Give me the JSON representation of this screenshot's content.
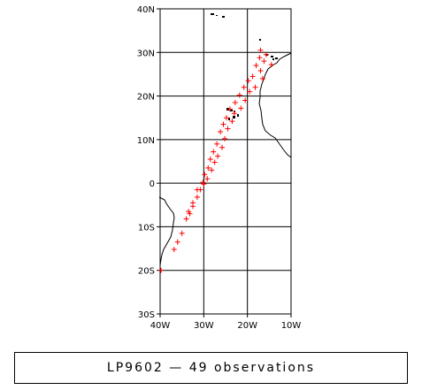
{
  "map": {
    "lon_range": [
      -40,
      -10
    ],
    "lat_range": [
      -30,
      40
    ],
    "x_ticks": [
      {
        "value": -40,
        "label": "40W"
      },
      {
        "value": -30,
        "label": "30W"
      },
      {
        "value": -20,
        "label": "20W"
      },
      {
        "value": -10,
        "label": "10W"
      }
    ],
    "y_ticks": [
      {
        "value": 40,
        "label": "40N"
      },
      {
        "value": 30,
        "label": "30N"
      },
      {
        "value": 20,
        "label": "20N"
      },
      {
        "value": 10,
        "label": "10N"
      },
      {
        "value": 0,
        "label": "0"
      },
      {
        "value": -10,
        "label": "10S"
      },
      {
        "value": -20,
        "label": "20S"
      },
      {
        "value": -30,
        "label": "30S"
      }
    ],
    "marker_color": "#ff0000",
    "marker_symbol": "+",
    "observations": [
      [
        -17.0,
        30.5
      ],
      [
        -15.7,
        29.5
      ],
      [
        -17.2,
        28.8
      ],
      [
        -16.2,
        28.0
      ],
      [
        -14.5,
        27.2
      ],
      [
        -18.0,
        27.0
      ],
      [
        -17.0,
        25.8
      ],
      [
        -18.8,
        24.5
      ],
      [
        -16.5,
        24.0
      ],
      [
        -19.8,
        23.5
      ],
      [
        -18.2,
        22.0
      ],
      [
        -20.8,
        22.0
      ],
      [
        -19.5,
        21.0
      ],
      [
        -21.8,
        20.2
      ],
      [
        -20.5,
        19.0
      ],
      [
        -22.8,
        18.5
      ],
      [
        -21.5,
        17.2
      ],
      [
        -24.0,
        17.0
      ],
      [
        -23.0,
        16.0
      ],
      [
        -24.8,
        15.0
      ],
      [
        -23.5,
        14.2
      ],
      [
        -25.5,
        13.5
      ],
      [
        -24.5,
        12.5
      ],
      [
        -26.2,
        11.8
      ],
      [
        -25.2,
        10.2
      ],
      [
        -27.0,
        9.0
      ],
      [
        -25.8,
        8.2
      ],
      [
        -27.8,
        7.2
      ],
      [
        -26.8,
        6.2
      ],
      [
        -28.5,
        5.5
      ],
      [
        -27.5,
        4.8
      ],
      [
        -29.0,
        3.5
      ],
      [
        -28.2,
        3.0
      ],
      [
        -29.8,
        2.0
      ],
      [
        -29.2,
        1.0
      ],
      [
        -30.2,
        0.2
      ],
      [
        -30.0,
        -0.2
      ],
      [
        -30.8,
        -1.5
      ],
      [
        -31.5,
        -1.5
      ],
      [
        -31.5,
        -3.2
      ],
      [
        -32.5,
        -4.5
      ],
      [
        -32.5,
        -5.3
      ],
      [
        -33.5,
        -6.5
      ],
      [
        -33.2,
        -7.0
      ],
      [
        -34.0,
        -8.2
      ],
      [
        -35.0,
        -11.5
      ],
      [
        -36.0,
        -13.5
      ],
      [
        -36.8,
        -15.2
      ],
      [
        -39.8,
        -20.0
      ]
    ],
    "icons": [
      "coastline-africa",
      "coastline-south-america",
      "island-markers"
    ]
  },
  "caption": {
    "text": "LP9602 — 49 observations"
  }
}
